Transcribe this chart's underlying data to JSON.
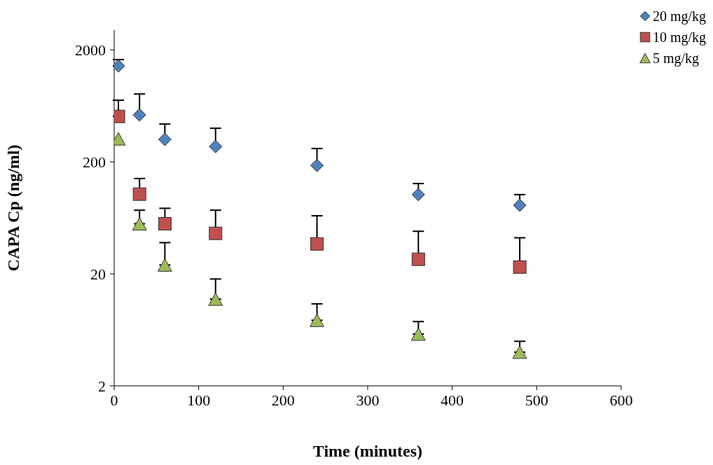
{
  "chart_data": {
    "type": "scatter",
    "xlabel": "Time (minutes)",
    "ylabel": "CAPA Cp (ng/ml)",
    "x": [
      5,
      30,
      60,
      120,
      240,
      360,
      480
    ],
    "series": [
      {
        "name": "20 mg/kg",
        "color": "#4f81bd",
        "marker": "diamond",
        "values": [
          1436,
          525,
          317,
          274,
          186,
          102,
          82
        ],
        "errors": [
          [
            1436,
            1635
          ],
          [
            525,
            807
          ],
          [
            317,
            435
          ],
          [
            274,
            399
          ],
          [
            186,
            263
          ],
          [
            102,
            128
          ],
          [
            82,
            102
          ]
        ]
      },
      {
        "name": "10 mg/kg",
        "color": "#c0504d",
        "marker": "square",
        "values": [
          509,
          103,
          56,
          46,
          37,
          27,
          23
        ],
        "errors": [
          [
            509,
            710
          ],
          [
            103,
            142
          ],
          [
            56,
            77
          ],
          [
            46,
            74
          ],
          [
            37,
            66
          ],
          [
            27,
            48
          ],
          [
            23,
            42
          ]
        ]
      },
      {
        "name": "5 mg/kg",
        "color": "#9bbb59",
        "marker": "triangle",
        "values": [
          321,
          56,
          24,
          11.9,
          7.7,
          5.8,
          4.0
        ],
        "errors": [
          null,
          [
            56,
            74
          ],
          [
            24,
            38
          ],
          [
            11.9,
            18
          ],
          [
            7.7,
            10.8
          ],
          [
            5.8,
            7.5
          ],
          [
            4.0,
            5.0
          ]
        ]
      }
    ],
    "log": "y",
    "xlim": [
      0,
      600
    ],
    "xticks": [
      0,
      100,
      200,
      300,
      400,
      500,
      600
    ],
    "ylim": [
      2,
      3000
    ],
    "yticks": [
      2,
      20,
      200,
      2000
    ],
    "grid": false,
    "legend": "top right"
  }
}
